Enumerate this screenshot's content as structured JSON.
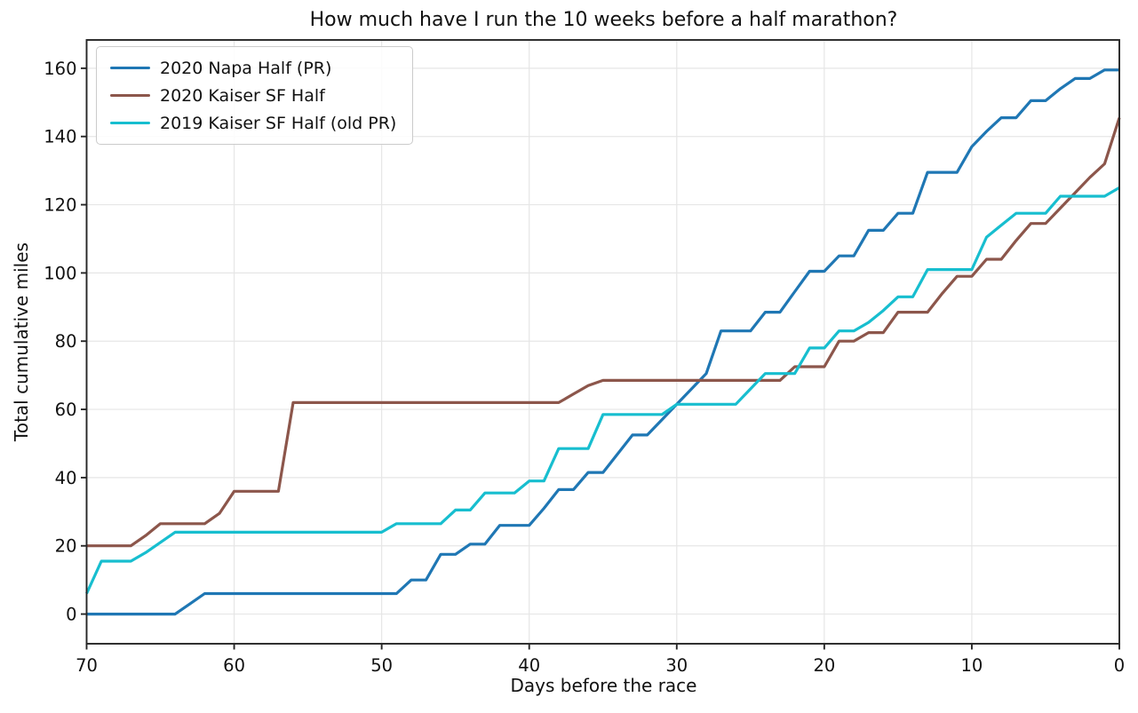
{
  "figure": {
    "background_color": "#ffffff",
    "grid_color": "#e6e6e6",
    "spine_color": "#262626",
    "text_color": "#111111"
  },
  "chart_data": {
    "type": "line",
    "title": "How much have I run the 10 weeks before a half marathon?",
    "xlabel": "Days before the race",
    "ylabel": "Total cumulative miles",
    "grid": true,
    "legend_position": "upper-left",
    "x_axis": {
      "min": 70,
      "max": 0,
      "reversed": true,
      "ticks": [
        70,
        60,
        50,
        40,
        30,
        20,
        10,
        0
      ]
    },
    "y_axis": {
      "min": -8.7,
      "max": 168.3,
      "ticks": [
        0,
        20,
        40,
        60,
        80,
        100,
        120,
        140,
        160
      ]
    },
    "series": [
      {
        "name": "2020 Napa Half (PR)",
        "color": "#1f77b4",
        "points": [
          [
            70,
            0
          ],
          [
            64,
            0
          ],
          [
            63,
            3
          ],
          [
            62,
            6
          ],
          [
            49,
            6
          ],
          [
            48,
            10
          ],
          [
            47,
            10
          ],
          [
            46,
            17.5
          ],
          [
            45,
            17.5
          ],
          [
            44,
            20.5
          ],
          [
            43,
            20.5
          ],
          [
            42,
            26
          ],
          [
            40,
            26
          ],
          [
            39,
            31
          ],
          [
            38,
            36.5
          ],
          [
            37,
            36.5
          ],
          [
            36,
            41.5
          ],
          [
            35,
            41.5
          ],
          [
            34,
            47
          ],
          [
            33,
            52.5
          ],
          [
            32,
            52.5
          ],
          [
            31,
            57
          ],
          [
            30,
            61.5
          ],
          [
            29,
            66
          ],
          [
            28,
            70.5
          ],
          [
            27,
            83
          ],
          [
            25,
            83
          ],
          [
            24,
            88.5
          ],
          [
            23,
            88.5
          ],
          [
            22,
            94.5
          ],
          [
            21,
            100.5
          ],
          [
            20,
            100.5
          ],
          [
            19,
            105
          ],
          [
            18,
            105
          ],
          [
            17,
            112.5
          ],
          [
            16,
            112.5
          ],
          [
            15,
            117.5
          ],
          [
            14,
            117.5
          ],
          [
            13,
            129.5
          ],
          [
            11,
            129.5
          ],
          [
            10,
            137
          ],
          [
            9,
            141.5
          ],
          [
            8,
            145.5
          ],
          [
            7,
            145.5
          ],
          [
            6,
            150.5
          ],
          [
            5,
            150.5
          ],
          [
            4,
            154
          ],
          [
            3,
            157
          ],
          [
            2,
            157
          ],
          [
            1,
            159.5
          ],
          [
            0,
            159.5
          ]
        ]
      },
      {
        "name": "2020 Kaiser SF Half",
        "color": "#8c564b",
        "points": [
          [
            70,
            20
          ],
          [
            67,
            20
          ],
          [
            66,
            23
          ],
          [
            65,
            26.5
          ],
          [
            62,
            26.5
          ],
          [
            61,
            29.5
          ],
          [
            60,
            36
          ],
          [
            57,
            36
          ],
          [
            56,
            62
          ],
          [
            38,
            62
          ],
          [
            37,
            64.5
          ],
          [
            36,
            67
          ],
          [
            35,
            68.5
          ],
          [
            23,
            68.5
          ],
          [
            22,
            72.5
          ],
          [
            20,
            72.5
          ],
          [
            19,
            80
          ],
          [
            18,
            80
          ],
          [
            17,
            82.5
          ],
          [
            16,
            82.5
          ],
          [
            15,
            88.5
          ],
          [
            13,
            88.5
          ],
          [
            12,
            94
          ],
          [
            11,
            99
          ],
          [
            10,
            99
          ],
          [
            9,
            104
          ],
          [
            8,
            104
          ],
          [
            7,
            109.5
          ],
          [
            6,
            114.5
          ],
          [
            5,
            114.5
          ],
          [
            4,
            119
          ],
          [
            3,
            123.5
          ],
          [
            2,
            128
          ],
          [
            1,
            132
          ],
          [
            0,
            145.5
          ]
        ]
      },
      {
        "name": "2019 Kaiser SF Half (old PR)",
        "color": "#17becf",
        "points": [
          [
            70,
            6
          ],
          [
            69,
            15.5
          ],
          [
            67,
            15.5
          ],
          [
            66,
            18
          ],
          [
            65,
            21
          ],
          [
            64,
            24
          ],
          [
            50,
            24
          ],
          [
            49,
            26.5
          ],
          [
            46,
            26.5
          ],
          [
            45,
            30.5
          ],
          [
            44,
            30.5
          ],
          [
            43,
            35.5
          ],
          [
            41,
            35.5
          ],
          [
            40,
            39
          ],
          [
            39,
            39
          ],
          [
            38,
            48.5
          ],
          [
            36,
            48.5
          ],
          [
            35,
            58.5
          ],
          [
            31,
            58.5
          ],
          [
            30,
            61.5
          ],
          [
            26,
            61.5
          ],
          [
            25,
            66
          ],
          [
            24,
            70.5
          ],
          [
            22,
            70.5
          ],
          [
            21,
            78
          ],
          [
            20,
            78
          ],
          [
            19,
            83
          ],
          [
            18,
            83
          ],
          [
            17,
            85.5
          ],
          [
            16,
            89
          ],
          [
            15,
            93
          ],
          [
            14,
            93
          ],
          [
            13,
            101
          ],
          [
            10,
            101
          ],
          [
            9,
            110.5
          ],
          [
            8,
            114
          ],
          [
            7,
            117.5
          ],
          [
            5,
            117.5
          ],
          [
            4,
            122.5
          ],
          [
            1,
            122.5
          ],
          [
            0,
            125
          ]
        ]
      }
    ]
  }
}
